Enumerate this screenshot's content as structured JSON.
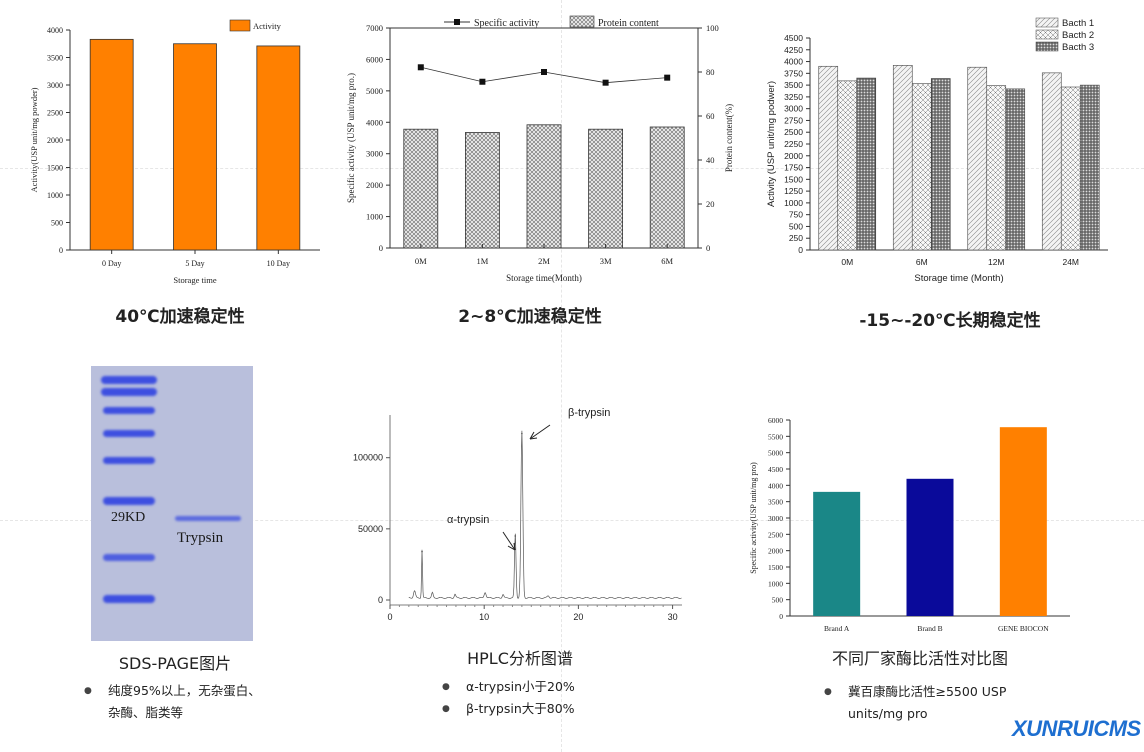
{
  "charts": {
    "accelerated40": {
      "caption": "40℃加速稳定性",
      "legend": "Activity"
    },
    "accelerated2_8": {
      "caption": "2~8℃加速稳定性",
      "legend_line": "Specific activity",
      "legend_bar": "Protein content"
    },
    "longterm": {
      "caption": "-15~-20℃长期稳定性",
      "legend": [
        "Bacth 1",
        "Bacth 2",
        "Bacth 3"
      ]
    },
    "brands": {
      "caption": "不同厂家酶比活性对比图",
      "bullet": "冀百康酶比活性≥5500 USP",
      "bullet_cont": "units/mg pro"
    },
    "hplc": {
      "caption": "HPLC分析图谱",
      "annot_alpha": "α-trypsin",
      "annot_beta": "β-trypsin",
      "bullets": [
        "α-trypsin小于20%",
        "β-trypsin大于80%"
      ]
    }
  },
  "sds": {
    "caption": "SDS-PAGE图片",
    "marker_label": "29KD",
    "lane_label": "Trypsin",
    "bullet": "纯度95%以上，无杂蛋白、",
    "bullet_cont": "杂酶、脂类等"
  },
  "logo": "XUNRUICMS",
  "colors": {
    "orange": "#ff8000",
    "teal": "#1a8787",
    "navy": "#0a0a9a",
    "gel_band": "#3d4fe0"
  },
  "chart_data": [
    {
      "type": "bar",
      "title": "",
      "categories": [
        "0 Day",
        "5 Day",
        "10 Day"
      ],
      "series": [
        {
          "name": "Activity",
          "values": [
            3830,
            3750,
            3710
          ]
        }
      ],
      "xlabel": "Storage time",
      "ylabel": "Activity(USP unit/mg powder)",
      "ylim": [
        0,
        4000
      ],
      "yticks": [
        0,
        500,
        1000,
        1500,
        2000,
        2500,
        3000,
        3500,
        4000
      ],
      "legend": "top-right"
    },
    {
      "type": "bar",
      "title": "",
      "categories": [
        "0M",
        "1M",
        "2M",
        "3M",
        "6M"
      ],
      "series": [
        {
          "name": "Specific activity",
          "type": "line",
          "axis": "left",
          "values": [
            5750,
            5290,
            5600,
            5260,
            5420
          ]
        },
        {
          "name": "Protein content",
          "type": "bar",
          "axis": "right",
          "values": [
            54,
            52.5,
            56,
            54,
            55
          ]
        }
      ],
      "xlabel": "Storage time(Month)",
      "ylabel": "Specific activity (USP unit/mg pro.)",
      "ylabel_right": "Protein content(%)",
      "ylim": [
        0,
        7000
      ],
      "ylim_right": [
        0,
        100
      ],
      "yticks": [
        0,
        1000,
        2000,
        3000,
        4000,
        5000,
        6000,
        7000
      ],
      "yticks_right": [
        0,
        20,
        40,
        60,
        80,
        100
      ],
      "legend": "top"
    },
    {
      "type": "bar",
      "title": "",
      "categories": [
        "0M",
        "6M",
        "12M",
        "24M"
      ],
      "series": [
        {
          "name": "Bacth 1",
          "values": [
            3900,
            3920,
            3880,
            3760
          ]
        },
        {
          "name": "Bacth 2",
          "values": [
            3590,
            3530,
            3490,
            3460
          ]
        },
        {
          "name": "Bacth 3",
          "values": [
            3650,
            3640,
            3420,
            3500
          ]
        }
      ],
      "xlabel": "Storage time (Month)",
      "ylabel": "Activity (USP unit/mg podwer)",
      "ylim": [
        0,
        4500
      ],
      "yticks": [
        0,
        250,
        500,
        750,
        1000,
        1250,
        1500,
        1750,
        2000,
        2250,
        2500,
        2750,
        3000,
        3250,
        3500,
        3750,
        4000,
        4250,
        4500
      ],
      "legend": "top-right"
    },
    {
      "type": "line",
      "title": "",
      "xlim": [
        0,
        31
      ],
      "ylim": [
        0,
        130000
      ],
      "xticks": [
        0,
        10,
        20,
        30
      ],
      "yticks": [
        0,
        50000,
        100000
      ],
      "peaks": [
        {
          "x": 3.4,
          "y": 34000
        },
        {
          "x": 13.3,
          "y": 45000
        },
        {
          "x": 14.0,
          "y": 117000
        }
      ]
    },
    {
      "type": "bar",
      "title": "",
      "categories": [
        "Brand A",
        "Brand B",
        "GENE BIOCON"
      ],
      "series": [
        {
          "values": [
            3800,
            4200,
            5780
          ]
        }
      ],
      "ylabel": "Specific activity(USP unit/mg pro)",
      "ylim": [
        0,
        6000
      ],
      "yticks": [
        0,
        500,
        1000,
        1500,
        2000,
        2500,
        3000,
        3500,
        4000,
        4500,
        5000,
        5500,
        6000
      ]
    }
  ]
}
